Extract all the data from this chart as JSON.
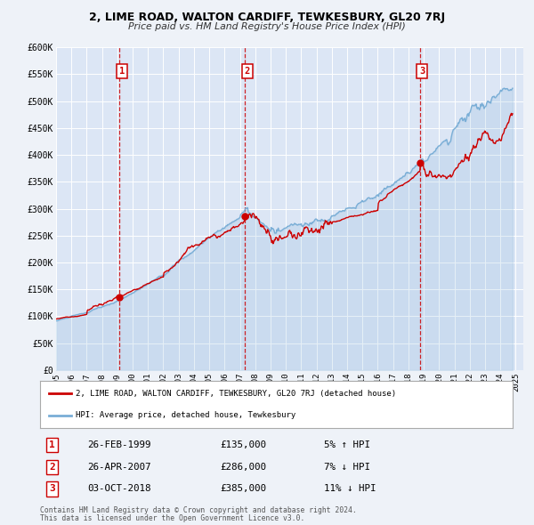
{
  "title": "2, LIME ROAD, WALTON CARDIFF, TEWKESBURY, GL20 7RJ",
  "subtitle": "Price paid vs. HM Land Registry's House Price Index (HPI)",
  "bg_color": "#eef2f8",
  "plot_bg": "#dce6f5",
  "red_line_color": "#cc0000",
  "blue_line_color": "#7aaed6",
  "legend_label_red": "2, LIME ROAD, WALTON CARDIFF, TEWKESBURY, GL20 7RJ (detached house)",
  "legend_label_blue": "HPI: Average price, detached house, Tewkesbury",
  "sale_points": [
    {
      "label": "1",
      "date": "26-FEB-1999",
      "price": 135000,
      "pct": "5% ↑ HPI",
      "x": 1999.15
    },
    {
      "label": "2",
      "date": "26-APR-2007",
      "price": 286000,
      "pct": "7% ↓ HPI",
      "x": 2007.32
    },
    {
      "label": "3",
      "date": "03-OCT-2018",
      "price": 385000,
      "pct": "11% ↓ HPI",
      "x": 2018.75
    }
  ],
  "footer1": "Contains HM Land Registry data © Crown copyright and database right 2024.",
  "footer2": "This data is licensed under the Open Government Licence v3.0.",
  "ylim": [
    0,
    600000
  ],
  "xlim": [
    1995.0,
    2025.5
  ],
  "yticks": [
    0,
    50000,
    100000,
    150000,
    200000,
    250000,
    300000,
    350000,
    400000,
    450000,
    500000,
    550000,
    600000
  ],
  "ytick_labels": [
    "£0",
    "£50K",
    "£100K",
    "£150K",
    "£200K",
    "£250K",
    "£300K",
    "£350K",
    "£400K",
    "£450K",
    "£500K",
    "£550K",
    "£600K"
  ]
}
